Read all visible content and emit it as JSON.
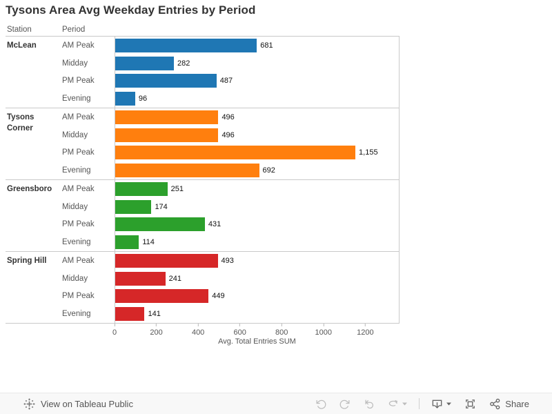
{
  "title": "Tysons Area Avg Weekday Entries by Period",
  "headers": {
    "station": "Station",
    "period": "Period"
  },
  "chart_data": {
    "type": "bar",
    "orientation": "horizontal",
    "title": "Tysons Area Avg Weekday Entries by Period",
    "xlabel": "Avg. Total Entries SUM",
    "xlim": [
      0,
      1364
    ],
    "xticks": [
      0,
      200,
      400,
      600,
      800,
      1000,
      1200
    ],
    "categories": [
      "AM Peak",
      "Midday",
      "PM Peak",
      "Evening"
    ],
    "series": [
      {
        "name": "McLean",
        "color": "#1f77b4",
        "values": [
          681,
          282,
          487,
          96
        ],
        "labels": [
          "681",
          "282",
          "487",
          "96"
        ]
      },
      {
        "name": "Tysons Corner",
        "color": "#ff7f0e",
        "values": [
          496,
          496,
          1155,
          692
        ],
        "labels": [
          "496",
          "496",
          "1,155",
          "692"
        ]
      },
      {
        "name": "Greensboro",
        "color": "#2ca02c",
        "values": [
          251,
          174,
          431,
          114
        ],
        "labels": [
          "251",
          "174",
          "431",
          "114"
        ]
      },
      {
        "name": "Spring Hill",
        "color": "#d62728",
        "values": [
          493,
          241,
          449,
          141
        ],
        "labels": [
          "493",
          "241",
          "449",
          "141"
        ]
      }
    ],
    "legend": "none",
    "grid": "off"
  },
  "footer": {
    "view_on_tableau_public": "View on Tableau Public",
    "share": "Share",
    "tool_icons": [
      "undo-icon",
      "redo-icon",
      "replay-icon",
      "refresh-icon",
      "caret-down-icon",
      "download-icon",
      "fullscreen-icon",
      "share-icon"
    ]
  },
  "colors": {
    "title_text": "#333333",
    "label_text": "#555555",
    "value_text": "#111111",
    "separator": "#c9c9c9",
    "footer_bg": "#f8f8f8",
    "icon_disabled": "#bdbdbd",
    "icon_enabled": "#666666"
  }
}
